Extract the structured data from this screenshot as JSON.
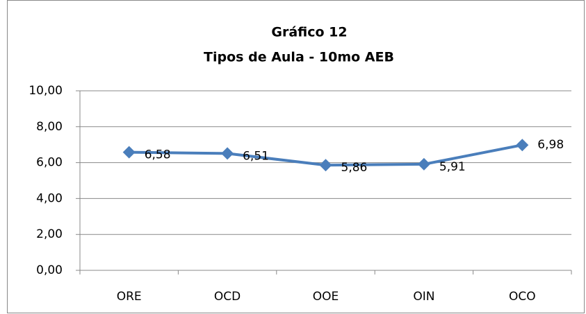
{
  "chart_data": {
    "type": "line",
    "title": "Gráfico 12",
    "subtitle": "Tipos de Aula - 10mo AEB",
    "categories": [
      "ORE",
      "OCD",
      "OOE",
      "OIN",
      "OCO"
    ],
    "series": [
      {
        "color": "#4a7ebb",
        "values": [
          6.58,
          6.51,
          5.86,
          5.91,
          6.98
        ],
        "value_labels": [
          "6,58",
          "6,51",
          "5,86",
          "5,91",
          "6,98"
        ]
      }
    ],
    "ylim": [
      0,
      10
    ],
    "yticks": [
      {
        "value": 0,
        "label": "0,00"
      },
      {
        "value": 2,
        "label": "2,00"
      },
      {
        "value": 4,
        "label": "4,00"
      },
      {
        "value": 6,
        "label": "6,00"
      },
      {
        "value": 8,
        "label": "8,00"
      },
      {
        "value": 10,
        "label": "10,00"
      }
    ],
    "grid": true
  }
}
